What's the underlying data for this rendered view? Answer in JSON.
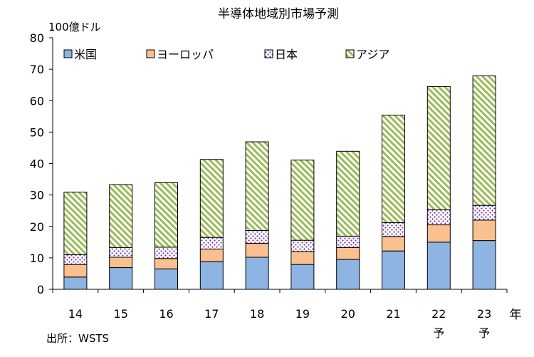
{
  "chart_data": {
    "type": "bar",
    "stacked": true,
    "title": "半導体地域別市場予測",
    "unit_label": "100億ドル",
    "x_unit": "年",
    "source": "出所：WSTS",
    "categories": [
      "14",
      "15",
      "16",
      "17",
      "18",
      "19",
      "20",
      "21",
      "22",
      "23"
    ],
    "category_sublabels": [
      "",
      "",
      "",
      "",
      "",
      "",
      "",
      "",
      "予",
      "予"
    ],
    "ylim": [
      0,
      80
    ],
    "yticks": [
      "0",
      "10",
      "20",
      "30",
      "40",
      "50",
      "60",
      "70",
      "80"
    ],
    "grid": false,
    "legend_position": "top",
    "series": [
      {
        "name": "米国",
        "color": "#8eb4e3",
        "pattern": "solid",
        "values": [
          3.9,
          6.9,
          6.5,
          8.8,
          10.2,
          7.9,
          9.5,
          12.2,
          15.0,
          15.5
        ]
      },
      {
        "name": "ヨーロッパ",
        "color": "#fac090",
        "pattern": "solid",
        "values": [
          4.0,
          3.3,
          3.3,
          4.0,
          4.4,
          4.1,
          3.8,
          4.6,
          5.5,
          6.5
        ]
      },
      {
        "name": "日本",
        "color": "#7030a0",
        "pattern": "dots",
        "values": [
          3.1,
          3.1,
          3.6,
          3.7,
          4.1,
          3.6,
          3.6,
          4.4,
          4.8,
          4.7
        ]
      },
      {
        "name": "アジア",
        "color": "#9bbb59",
        "pattern": "hatch",
        "values": [
          19.9,
          20.0,
          20.5,
          24.8,
          28.2,
          25.5,
          27.0,
          34.2,
          39.2,
          41.2
        ]
      }
    ]
  }
}
